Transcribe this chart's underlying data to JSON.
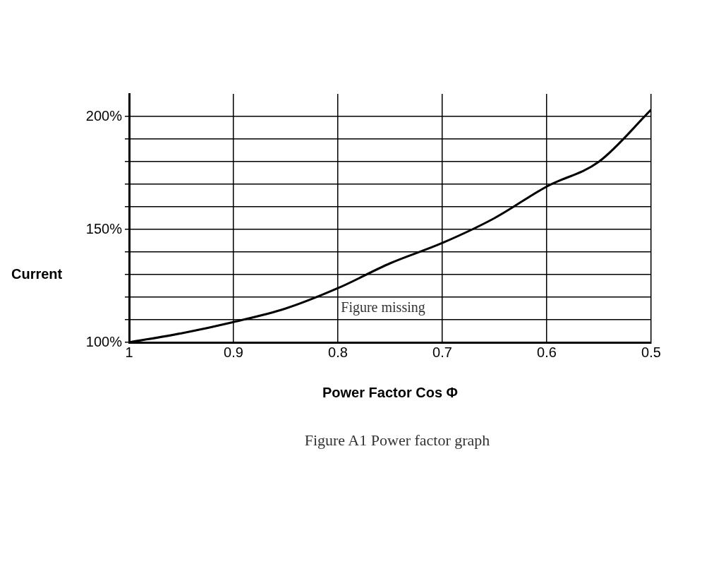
{
  "chart_data": {
    "type": "line",
    "xlabel": "Power Factor Cos Φ",
    "ylabel": "Current",
    "annotations": [
      "Figure missing",
      "Figure A1 Power factor graph"
    ],
    "x": [
      1,
      0.95,
      0.9,
      0.85,
      0.8,
      0.75,
      0.7,
      0.65,
      0.6,
      0.55,
      0.5
    ],
    "series": [
      {
        "color": "#000000",
        "values": [
          100,
          104,
          109,
          115,
          124,
          135,
          144,
          155,
          169,
          180,
          203
        ]
      }
    ],
    "xlim": [
      1,
      0.5
    ],
    "xticks": [
      {
        "value": 1,
        "label": "1"
      },
      {
        "value": 0.9,
        "label": "0.9"
      },
      {
        "value": 0.8,
        "label": "0.8"
      },
      {
        "value": 0.7,
        "label": "0.7"
      },
      {
        "value": 0.6,
        "label": "0.6"
      },
      {
        "value": 0.5,
        "label": "0.5"
      }
    ],
    "ylim": [
      100,
      210
    ],
    "yticks": [
      {
        "value": 100,
        "label": "100%"
      },
      {
        "value": 110,
        "label": null
      },
      {
        "value": 120,
        "label": null
      },
      {
        "value": 130,
        "label": null
      },
      {
        "value": 140,
        "label": null
      },
      {
        "value": 150,
        "label": "150%"
      },
      {
        "value": 160,
        "label": null
      },
      {
        "value": 170,
        "label": null
      },
      {
        "value": 180,
        "label": null
      },
      {
        "value": 190,
        "label": null
      },
      {
        "value": 200,
        "label": "200%"
      }
    ],
    "grid": true,
    "legend": false,
    "marker": "none",
    "line_style": "solid"
  }
}
